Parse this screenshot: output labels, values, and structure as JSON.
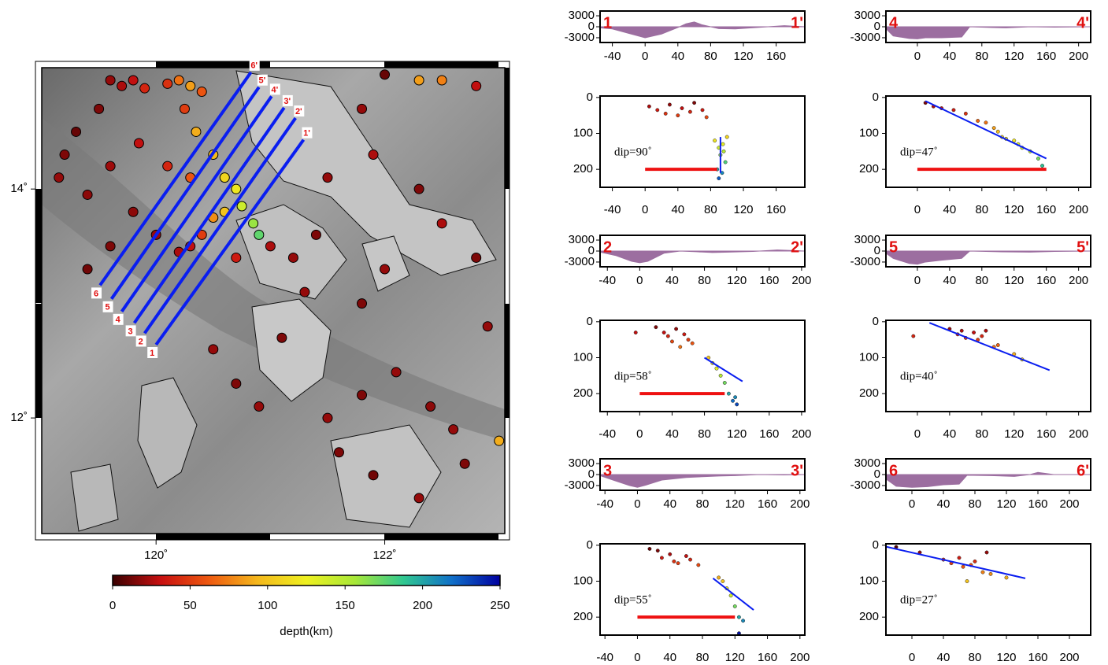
{
  "chart_data": [
    {
      "type": "map",
      "xlim": [
        119,
        123.05
      ],
      "ylim": [
        10.99,
        15.06
      ],
      "xticks": [
        {
          "value": 120,
          "label": "120˚"
        },
        {
          "value": 122,
          "label": "122˚"
        }
      ],
      "yticks": [
        {
          "value": 12,
          "label": "12˚"
        },
        {
          "value": 14,
          "label": "14˚"
        }
      ],
      "profile_color": "#0a1ef0",
      "profiles": [
        {
          "start_label": "1",
          "end_label": "1'",
          "lon": [
            120.0,
            121.29
          ],
          "lat": [
            12.64,
            14.43
          ]
        },
        {
          "start_label": "2",
          "end_label": "2'",
          "lon": [
            119.9,
            121.22
          ],
          "lat": [
            12.74,
            14.62
          ]
        },
        {
          "start_label": "3",
          "end_label": "3'",
          "lon": [
            119.81,
            121.12
          ],
          "lat": [
            12.83,
            14.71
          ]
        },
        {
          "start_label": "4",
          "end_label": "4'",
          "lon": [
            119.7,
            121.01
          ],
          "lat": [
            12.93,
            14.81
          ]
        },
        {
          "start_label": "5",
          "end_label": "5'",
          "lon": [
            119.61,
            120.9
          ],
          "lat": [
            13.04,
            14.89
          ]
        },
        {
          "start_label": "6",
          "end_label": "6'",
          "lon": [
            119.51,
            120.83
          ],
          "lat": [
            13.16,
            15.02
          ]
        }
      ],
      "events": {
        "lon": [
          119.6,
          119.7,
          119.8,
          119.9,
          120.1,
          120.2,
          120.3,
          120.4,
          120.25,
          120.35,
          119.5,
          119.3,
          119.2,
          119.15,
          119.4,
          119.6,
          119.85,
          120.1,
          120.3,
          120.5,
          120.6,
          120.7,
          120.75,
          120.85,
          120.9,
          120.6,
          120.5,
          120.4,
          120.3,
          120.2,
          120.0,
          119.8,
          119.6,
          119.4,
          120.7,
          121.0,
          121.2,
          121.4,
          121.3,
          121.1,
          120.5,
          120.7,
          120.9,
          121.5,
          121.8,
          122.1,
          122.4,
          122.6,
          121.6,
          121.9,
          122.3,
          122.7,
          121.8,
          122.0,
          122.5,
          122.8,
          122.9,
          122.3,
          121.8,
          122.0,
          122.3,
          122.5,
          122.8,
          121.9,
          121.5,
          123.0
        ],
        "lat": [
          14.95,
          14.9,
          14.95,
          14.88,
          14.92,
          14.95,
          14.9,
          14.85,
          14.7,
          14.5,
          14.7,
          14.5,
          14.3,
          14.1,
          13.95,
          14.2,
          14.4,
          14.2,
          14.1,
          14.3,
          14.1,
          14.0,
          13.85,
          13.7,
          13.6,
          13.8,
          13.75,
          13.6,
          13.5,
          13.45,
          13.6,
          13.8,
          13.5,
          13.3,
          13.4,
          13.5,
          13.4,
          13.6,
          13.1,
          12.7,
          12.6,
          12.3,
          12.1,
          12.0,
          12.2,
          12.4,
          12.1,
          11.9,
          11.7,
          11.5,
          11.3,
          11.6,
          13.0,
          13.3,
          13.7,
          13.4,
          12.8,
          14.0,
          14.7,
          15.0,
          14.95,
          14.95,
          14.9,
          14.3,
          14.1,
          11.8
        ],
        "depth": [
          20,
          25,
          30,
          40,
          45,
          70,
          85,
          60,
          50,
          90,
          15,
          10,
          15,
          20,
          18,
          22,
          30,
          40,
          60,
          95,
          110,
          120,
          140,
          160,
          175,
          100,
          80,
          50,
          30,
          25,
          20,
          18,
          15,
          12,
          35,
          25,
          20,
          15,
          20,
          15,
          20,
          15,
          20,
          20,
          15,
          20,
          18,
          20,
          15,
          12,
          20,
          15,
          15,
          20,
          25,
          15,
          20,
          15,
          20,
          10,
          85,
          75,
          30,
          25,
          20,
          90
        ]
      }
    },
    {
      "type": "colorbar",
      "label": "depth(km)",
      "clim": [
        0,
        250
      ],
      "ticks": [
        0,
        50,
        100,
        150,
        200,
        250
      ],
      "colors": [
        "#3a0000",
        "#c81010",
        "#ee5a10",
        "#f4b81c",
        "#eef020",
        "#a8e838",
        "#30c890",
        "#1070c8",
        "#0000a0"
      ]
    },
    {
      "type": "profile",
      "start_label": "1",
      "end_label": "1'",
      "xlim": [
        -55,
        195
      ],
      "xticks": [
        -40,
        0,
        40,
        80,
        120,
        160
      ],
      "topo_ylim": [
        -4300,
        4300
      ],
      "topo_yticks": [
        3000,
        0,
        -3000
      ],
      "topo_color": "#9c6ea0",
      "topo_x": [
        -55,
        -40,
        -20,
        0,
        20,
        40,
        50,
        60,
        70,
        90,
        110,
        130,
        150,
        170,
        195
      ],
      "topo_z": [
        -300,
        -600,
        -1800,
        -3000,
        -2000,
        -200,
        800,
        1300,
        500,
        -500,
        -600,
        -300,
        0,
        300,
        0
      ],
      "depth_ylim": [
        250,
        -4
      ],
      "depth_yticks": [
        0,
        100,
        200
      ],
      "event_x": [
        5,
        15,
        25,
        30,
        40,
        45,
        55,
        60,
        70,
        75,
        85,
        90,
        95,
        100,
        92,
        96,
        88,
        98,
        94,
        90
      ],
      "event_depth": [
        25,
        35,
        45,
        20,
        50,
        30,
        40,
        15,
        35,
        55,
        120,
        140,
        130,
        110,
        160,
        150,
        200,
        180,
        210,
        225
      ],
      "dip_x": [
        92,
        92
      ],
      "dip_depth": [
        110,
        210
      ],
      "dip_color": "#0a1ef0",
      "dip_label": "dip=90˚",
      "bar_x": [
        0,
        88
      ],
      "bar_depth": [
        200,
        200
      ],
      "bar_color": "#ee1111"
    },
    {
      "type": "profile",
      "start_label": "2",
      "end_label": "2'",
      "xlim": [
        -49,
        204
      ],
      "xticks": [
        -40,
        0,
        40,
        80,
        120,
        160,
        200
      ],
      "topo_ylim": [
        -4300,
        4300
      ],
      "topo_yticks": [
        3000,
        0,
        -3000
      ],
      "topo_color": "#9c6ea0",
      "topo_x": [
        -49,
        -30,
        -10,
        0,
        10,
        30,
        50,
        70,
        90,
        110,
        140,
        170,
        204
      ],
      "topo_z": [
        -300,
        -1200,
        -2800,
        -3200,
        -2800,
        -600,
        0,
        -200,
        -400,
        -300,
        -100,
        300,
        0
      ],
      "depth_ylim": [
        250,
        -4
      ],
      "depth_yticks": [
        0,
        100,
        200
      ],
      "event_x": [
        -5,
        20,
        30,
        35,
        40,
        45,
        50,
        55,
        60,
        65,
        85,
        90,
        95,
        100,
        105,
        110,
        115,
        120,
        118
      ],
      "event_depth": [
        30,
        15,
        30,
        40,
        55,
        20,
        70,
        35,
        50,
        60,
        100,
        115,
        130,
        150,
        170,
        200,
        220,
        230,
        210
      ],
      "dip_x": [
        80,
        127
      ],
      "dip_depth": [
        100,
        166
      ],
      "dip_color": "#0a1ef0",
      "dip_label": "dip=58˚",
      "bar_x": [
        0,
        105
      ],
      "bar_depth": [
        200,
        200
      ],
      "bar_color": "#ee1111"
    },
    {
      "type": "profile",
      "start_label": "3",
      "end_label": "3'",
      "xlim": [
        -46,
        206
      ],
      "xticks": [
        -40,
        0,
        40,
        80,
        120,
        160,
        200
      ],
      "topo_ylim": [
        -4300,
        4300
      ],
      "topo_yticks": [
        3000,
        0,
        -3000
      ],
      "topo_color": "#9c6ea0",
      "topo_x": [
        -46,
        -30,
        -10,
        0,
        10,
        30,
        60,
        80,
        100,
        120,
        150,
        180,
        206
      ],
      "topo_z": [
        -300,
        -1500,
        -3000,
        -3500,
        -2900,
        -1500,
        -800,
        -600,
        -400,
        -300,
        0,
        -100,
        0
      ],
      "depth_ylim": [
        250,
        -4
      ],
      "depth_yticks": [
        0,
        100,
        200
      ],
      "event_x": [
        15,
        25,
        30,
        40,
        45,
        50,
        60,
        65,
        75,
        100,
        105,
        110,
        115,
        120,
        125,
        130,
        125
      ],
      "event_depth": [
        10,
        15,
        35,
        25,
        45,
        50,
        30,
        40,
        55,
        90,
        100,
        120,
        140,
        170,
        200,
        210,
        245
      ],
      "dip_x": [
        93,
        143
      ],
      "dip_depth": [
        92,
        180
      ],
      "dip_color": "#0a1ef0",
      "dip_label": "dip=55˚",
      "bar_x": [
        0,
        120
      ],
      "bar_depth": [
        200,
        200
      ],
      "bar_color": "#ee1111"
    },
    {
      "type": "profile",
      "start_label": "4",
      "end_label": "4'",
      "xlim": [
        -39,
        215
      ],
      "xticks": [
        0,
        40,
        80,
        120,
        160,
        200
      ],
      "topo_ylim": [
        -4300,
        4300
      ],
      "topo_yticks": [
        3000,
        0,
        -3000
      ],
      "topo_color": "#9c6ea0",
      "topo_x": [
        -39,
        -30,
        -10,
        0,
        10,
        30,
        55,
        65,
        90,
        110,
        140,
        170,
        215
      ],
      "topo_z": [
        -500,
        -2500,
        -3200,
        -3300,
        -3000,
        -3000,
        -2800,
        0,
        -200,
        -300,
        0,
        -100,
        0
      ],
      "depth_ylim": [
        250,
        -4
      ],
      "depth_yticks": [
        0,
        100,
        200
      ],
      "event_x": [
        10,
        20,
        30,
        45,
        60,
        75,
        85,
        95,
        100,
        105,
        110,
        120,
        125,
        130,
        140,
        150,
        155
      ],
      "event_depth": [
        15,
        25,
        30,
        35,
        45,
        65,
        70,
        85,
        95,
        110,
        115,
        120,
        130,
        140,
        150,
        170,
        190
      ],
      "dip_x": [
        10,
        160
      ],
      "dip_depth": [
        10,
        170
      ],
      "dip_color": "#0a1ef0",
      "dip_label": "dip=47˚",
      "bar_x": [
        0,
        160
      ],
      "bar_depth": [
        200,
        200
      ],
      "bar_color": "#ee1111"
    },
    {
      "type": "profile",
      "start_label": "5",
      "end_label": "5'",
      "xlim": [
        -39,
        215
      ],
      "xticks": [
        0,
        40,
        80,
        120,
        160,
        200
      ],
      "topo_ylim": [
        -4300,
        4300
      ],
      "topo_yticks": [
        3000,
        0,
        -3000
      ],
      "topo_color": "#9c6ea0",
      "topo_x": [
        -39,
        -30,
        -10,
        0,
        10,
        30,
        55,
        65,
        100,
        140,
        170,
        215
      ],
      "topo_z": [
        -600,
        -2000,
        -3400,
        -3600,
        -3000,
        -2500,
        -2000,
        0,
        -200,
        -300,
        -100,
        0
      ],
      "depth_ylim": [
        250,
        -4
      ],
      "depth_yticks": [
        0,
        100,
        200
      ],
      "event_x": [
        -5,
        40,
        50,
        55,
        60,
        70,
        75,
        80,
        85,
        95,
        100,
        120,
        130
      ],
      "event_depth": [
        40,
        20,
        35,
        25,
        45,
        30,
        50,
        40,
        25,
        70,
        65,
        90,
        105
      ],
      "dip_x": [
        15,
        164
      ],
      "dip_depth": [
        3,
        135
      ],
      "dip_color": "#0a1ef0",
      "dip_label": "dip=40˚"
    },
    {
      "type": "profile",
      "start_label": "6",
      "end_label": "6'",
      "xlim": [
        -33,
        227
      ],
      "xticks": [
        0,
        40,
        80,
        120,
        160,
        200
      ],
      "topo_ylim": [
        -4300,
        4300
      ],
      "topo_yticks": [
        3000,
        0,
        -3000
      ],
      "topo_color": "#9c6ea0",
      "topo_x": [
        -33,
        -20,
        0,
        20,
        40,
        60,
        70,
        100,
        130,
        150,
        160,
        180,
        227
      ],
      "topo_z": [
        -1200,
        -3200,
        -3500,
        -3300,
        -2800,
        -2600,
        -200,
        -300,
        -500,
        0,
        600,
        0,
        0
      ],
      "depth_ylim": [
        250,
        -4
      ],
      "depth_yticks": [
        0,
        100,
        200
      ],
      "event_x": [
        -20,
        10,
        40,
        50,
        60,
        65,
        70,
        75,
        80,
        90,
        95,
        100,
        120
      ],
      "event_depth": [
        5,
        20,
        40,
        50,
        35,
        60,
        100,
        55,
        45,
        75,
        20,
        80,
        90
      ],
      "dip_x": [
        -33,
        144
      ],
      "dip_depth": [
        4,
        92
      ],
      "dip_color": "#0a1ef0",
      "dip_label": "dip=27˚"
    }
  ]
}
